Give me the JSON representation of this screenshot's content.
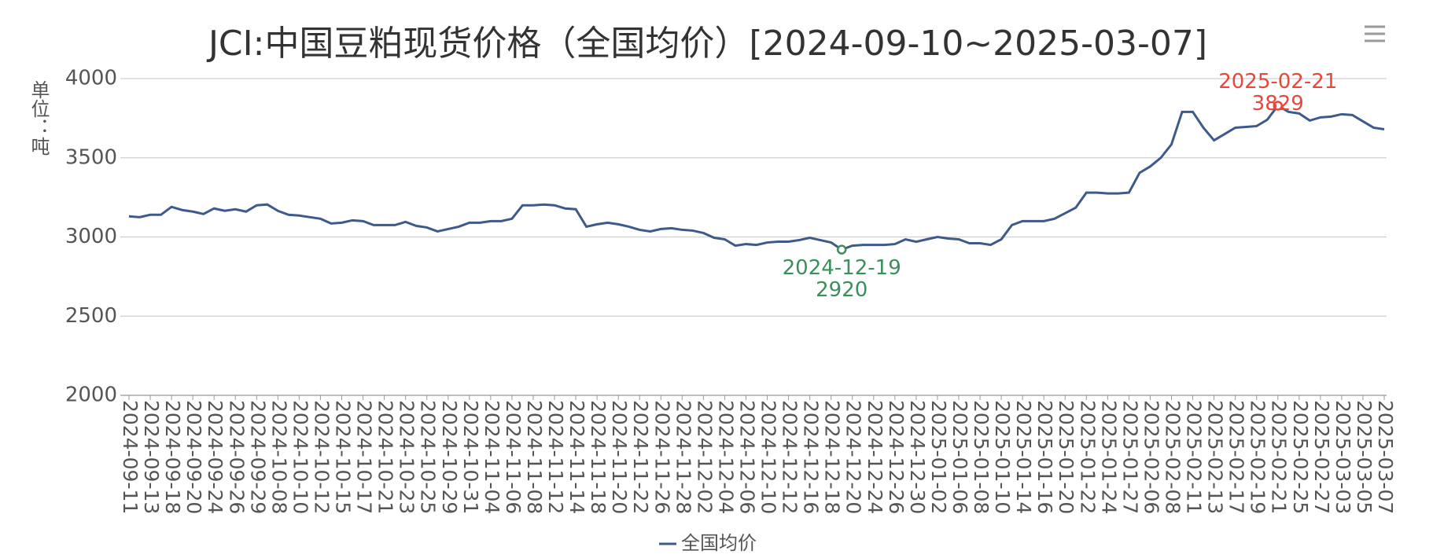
{
  "chart_data": {
    "type": "line",
    "title": "JCI:中国豆粕现货价格（全国均价）[2024-09-10~2025-03-07]",
    "y_label": "单位：吨",
    "categories": [
      "2024-09-11",
      null,
      "2024-09-13",
      null,
      "2024-09-18",
      null,
      "2024-09-20",
      null,
      "2024-09-24",
      null,
      "2024-09-26",
      null,
      "2024-09-29",
      null,
      "2024-10-08",
      null,
      "2024-10-10",
      null,
      "2024-10-12",
      null,
      "2024-10-15",
      null,
      "2024-10-17",
      null,
      "2024-10-21",
      null,
      "2024-10-23",
      null,
      "2024-10-25",
      null,
      "2024-10-29",
      null,
      "2024-10-31",
      null,
      "2024-11-04",
      null,
      "2024-11-06",
      null,
      "2024-11-08",
      null,
      "2024-11-12",
      null,
      "2024-11-14",
      null,
      "2024-11-18",
      null,
      "2024-11-20",
      null,
      "2024-11-22",
      null,
      "2024-11-26",
      null,
      "2024-11-28",
      null,
      "2024-12-02",
      null,
      "2024-12-04",
      null,
      "2024-12-06",
      null,
      "2024-12-10",
      null,
      "2024-12-12",
      null,
      "2024-12-16",
      null,
      "2024-12-18",
      null,
      "2024-12-20",
      null,
      "2024-12-24",
      null,
      "2024-12-26",
      null,
      "2024-12-30",
      null,
      "2025-01-02",
      null,
      "2025-01-06",
      null,
      "2025-01-08",
      null,
      "2025-01-10",
      null,
      "2025-01-14",
      null,
      "2025-01-16",
      null,
      "2025-01-20",
      null,
      "2025-01-22",
      null,
      "2025-01-24",
      null,
      "2025-01-27",
      null,
      "2025-02-06",
      null,
      "2025-02-08",
      null,
      "2025-02-11",
      null,
      "2025-02-13",
      null,
      "2025-02-17",
      null,
      "2025-02-19",
      null,
      "2025-02-21",
      null,
      "2025-02-25",
      null,
      "2025-02-27",
      null,
      "2025-03-03",
      null,
      "2025-03-05",
      null,
      "2025-03-07"
    ],
    "series": [
      {
        "name": "全国均价",
        "color": "#3d5a8a",
        "values": [
          3130,
          3125,
          3140,
          3140,
          3190,
          3170,
          3160,
          3145,
          3180,
          3165,
          3175,
          3160,
          3200,
          3205,
          3165,
          3140,
          3135,
          3125,
          3115,
          3085,
          3090,
          3105,
          3100,
          3075,
          3075,
          3075,
          3095,
          3070,
          3060,
          3035,
          3050,
          3065,
          3090,
          3090,
          3100,
          3100,
          3115,
          3200,
          3200,
          3205,
          3200,
          3180,
          3175,
          3065,
          3080,
          3090,
          3080,
          3065,
          3045,
          3035,
          3050,
          3055,
          3045,
          3040,
          3025,
          2995,
          2985,
          2945,
          2955,
          2950,
          2965,
          2970,
          2970,
          2980,
          2995,
          2980,
          2965,
          2920,
          2945,
          2950,
          2950,
          2950,
          2955,
          2985,
          2970,
          2985,
          3000,
          2990,
          2985,
          2960,
          2960,
          2950,
          2985,
          3075,
          3100,
          3100,
          3100,
          3115,
          3150,
          3185,
          3280,
          3280,
          3275,
          3275,
          3280,
          3405,
          3445,
          3500,
          3585,
          3790,
          3790,
          3690,
          3610,
          3650,
          3690,
          3695,
          3700,
          3740,
          3829,
          3790,
          3780,
          3735,
          3755,
          3760,
          3775,
          3770,
          3730,
          3690,
          3680
        ]
      }
    ],
    "annotations": [
      {
        "x": "2024-12-19",
        "y": 2920,
        "color": "#3a8f5a"
      },
      {
        "x": "2025-02-21",
        "y": 3829,
        "color": "#e8473b"
      }
    ],
    "ylim": [
      2000,
      4000
    ],
    "yticks": [
      2000,
      2500,
      3000,
      3500,
      4000
    ],
    "grid": true,
    "legend": "bottom"
  }
}
